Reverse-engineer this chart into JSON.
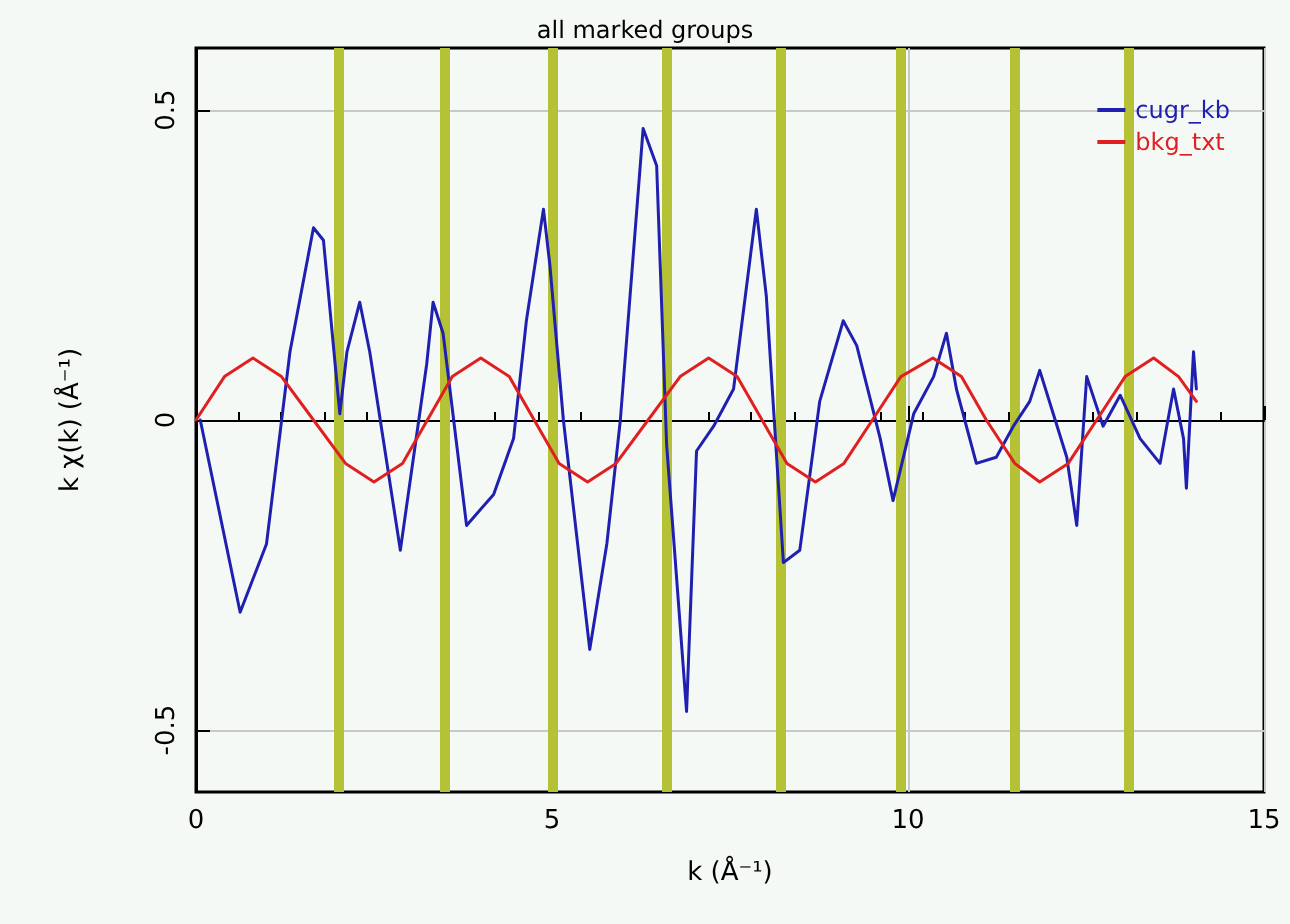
{
  "chart_data": {
    "type": "line",
    "title": "all marked groups",
    "xlabel": "k (Å⁻¹)",
    "ylabel": "k χ(k) (Å⁻¹)",
    "xlim": [
      0,
      15
    ],
    "xticks": [
      0,
      5,
      10,
      15
    ],
    "ylim": [
      -0.6,
      0.6
    ],
    "yticks": [
      -0.5,
      0,
      0.5
    ],
    "grid": true,
    "legend": "top right",
    "marker": "none",
    "line_style": "solid",
    "series": [
      {
        "name": "cugr_kb",
        "color": "#2020b0",
        "x": [
          0.06,
          0.62,
          0.99,
          1.32,
          1.65,
          1.79,
          2.02,
          2.12,
          2.3,
          2.44,
          2.87,
          3.24,
          3.33,
          3.47,
          3.8,
          4.18,
          4.46,
          4.64,
          4.88,
          4.97,
          5.16,
          5.53,
          5.77,
          5.96,
          6.28,
          6.47,
          6.61,
          6.89,
          7.03,
          7.27,
          7.55,
          7.87,
          8.01,
          8.25,
          8.48,
          8.76,
          9.09,
          9.28,
          9.61,
          9.79,
          10.08,
          10.36,
          10.54,
          10.68,
          10.96,
          11.24,
          11.48,
          11.71,
          11.85,
          12.04,
          12.23,
          12.37,
          12.51,
          12.74,
          12.98,
          13.26,
          13.54,
          13.73,
          13.87,
          13.91,
          14.01,
          14.05
        ],
        "values": [
          0,
          -0.31,
          -0.2,
          0.11,
          0.31,
          0.29,
          0.01,
          0.11,
          0.19,
          0.11,
          -0.21,
          0.09,
          0.19,
          0.14,
          -0.17,
          -0.12,
          -0.03,
          0.16,
          0.34,
          0.25,
          0,
          -0.37,
          -0.2,
          0,
          0.47,
          0.41,
          -0.04,
          -0.47,
          -0.05,
          -0.01,
          0.05,
          0.34,
          0.2,
          -0.23,
          -0.21,
          0.03,
          0.16,
          0.12,
          -0.03,
          -0.13,
          0.01,
          0.07,
          0.14,
          0.05,
          -0.07,
          -0.06,
          -0.01,
          0.03,
          0.08,
          0.01,
          -0.06,
          -0.17,
          0.07,
          -0.01,
          0.04,
          -0.03,
          -0.07,
          0.05,
          -0.03,
          -0.11,
          0.11,
          0.05
        ]
      },
      {
        "name": "bkg_txt",
        "color": "#e02020",
        "x": [
          0,
          0.4,
          0.8,
          1.2,
          1.65,
          2.1,
          2.5,
          2.9,
          3.25,
          3.6,
          4.0,
          4.4,
          4.75,
          5.1,
          5.5,
          5.9,
          6.35,
          6.8,
          7.2,
          7.6,
          7.95,
          8.3,
          8.7,
          9.1,
          9.5,
          9.9,
          10.35,
          10.75,
          11.1,
          11.5,
          11.85,
          12.25,
          12.65,
          13.05,
          13.45,
          13.8,
          14.05
        ],
        "values": [
          0,
          0.07,
          0.1,
          0.07,
          0,
          -0.07,
          -0.1,
          -0.07,
          0,
          0.07,
          0.1,
          0.07,
          0,
          -0.07,
          -0.1,
          -0.07,
          0,
          0.07,
          0.1,
          0.07,
          0,
          -0.07,
          -0.1,
          -0.07,
          0,
          0.07,
          0.1,
          0.07,
          0,
          -0.07,
          -0.1,
          -0.07,
          0,
          0.07,
          0.1,
          0.07,
          0.03
        ]
      }
    ],
    "ref_lines": [
      {
        "axis": "x",
        "value": 2.0,
        "color": "#b5c235"
      },
      {
        "axis": "x",
        "value": 3.5,
        "color": "#b5c235"
      },
      {
        "axis": "x",
        "value": 5.0,
        "color": "#b5c235"
      },
      {
        "axis": "x",
        "value": 6.6,
        "color": "#b5c235"
      },
      {
        "axis": "x",
        "value": 8.2,
        "color": "#b5c235"
      },
      {
        "axis": "x",
        "value": 9.9,
        "color": "#b5c235"
      },
      {
        "axis": "x",
        "value": 11.5,
        "color": "#b5c235"
      },
      {
        "axis": "x",
        "value": 13.1,
        "color": "#b5c235"
      }
    ]
  }
}
